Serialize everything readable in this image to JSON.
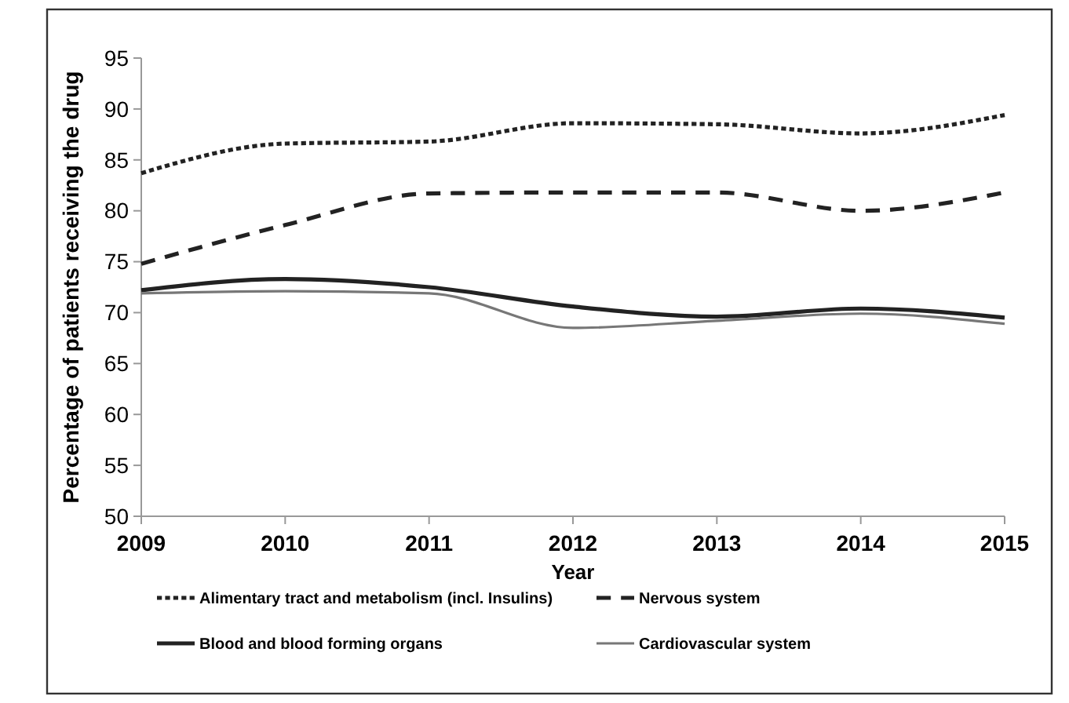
{
  "chart_data": {
    "type": "line",
    "xlabel": "Year",
    "ylabel": "Percentage of patients receiving the drug",
    "x": [
      2009,
      2010,
      2011,
      2012,
      2013,
      2014,
      2015
    ],
    "xlim": [
      2009,
      2015
    ],
    "xticks": [
      2009,
      2010,
      2011,
      2012,
      2013,
      2014,
      2015
    ],
    "ylim": [
      50,
      95
    ],
    "yticks": [
      50,
      55,
      60,
      65,
      70,
      75,
      80,
      85,
      90,
      95
    ],
    "legend": "bottom",
    "grid": false,
    "marker": "none",
    "series": [
      {
        "name": "Alimentary tract and metabolism (incl. Insulins)",
        "color": "#222222",
        "line_style": "dotted",
        "values": [
          83.7,
          86.6,
          86.8,
          88.6,
          88.5,
          87.6,
          89.4
        ]
      },
      {
        "name": "Nervous system",
        "color": "#222222",
        "line_style": "dashed",
        "values": [
          74.8,
          78.6,
          81.7,
          81.8,
          81.8,
          80.0,
          81.8
        ]
      },
      {
        "name": "Blood and blood forming organs",
        "color": "#222222",
        "line_style": "solid",
        "values": [
          72.2,
          73.3,
          72.5,
          70.6,
          69.6,
          70.4,
          69.5
        ]
      },
      {
        "name": "Cardiovascular system",
        "color": "#777777",
        "line_style": "solid",
        "values": [
          71.9,
          72.1,
          71.9,
          68.5,
          69.2,
          69.9,
          68.9
        ]
      }
    ]
  }
}
